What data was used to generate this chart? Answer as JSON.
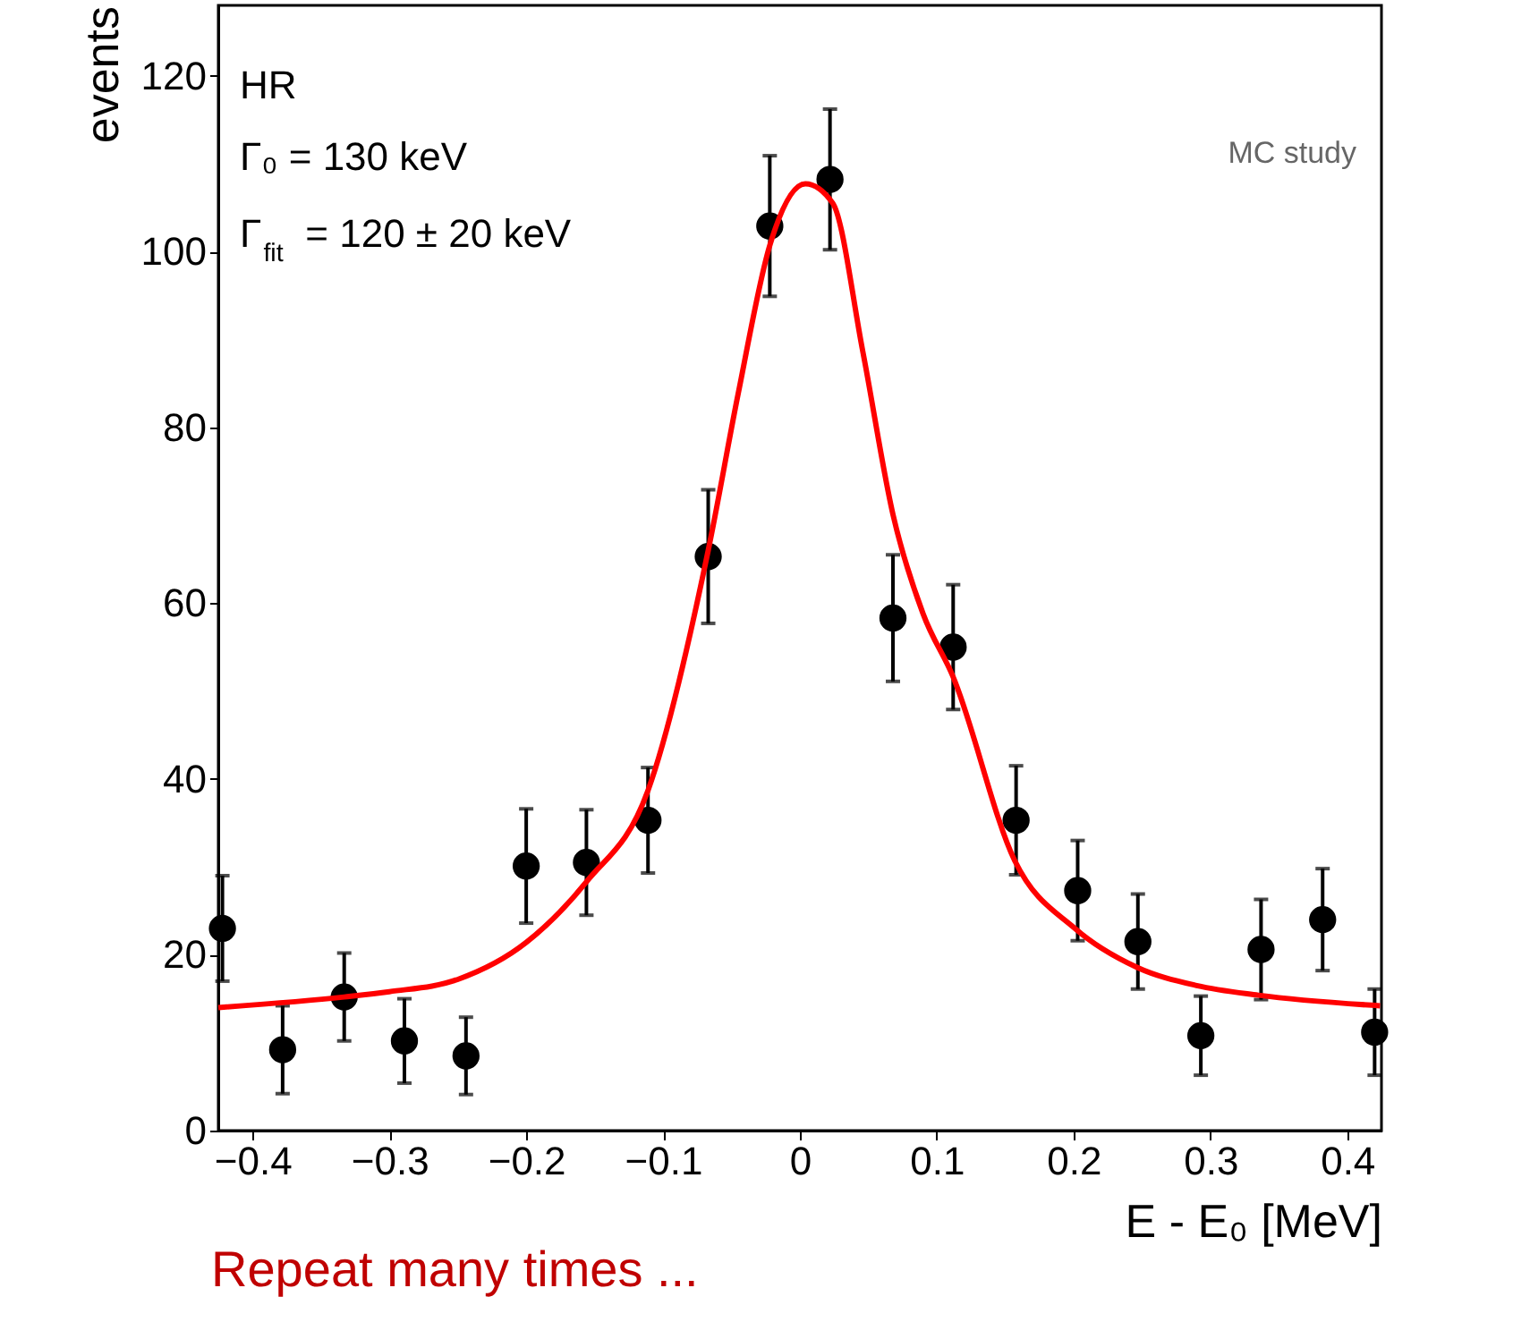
{
  "chart_data": {
    "type": "scatter",
    "xlabel": "E - E₀ [MeV]",
    "ylabel": "events",
    "xlim": [
      -0.425,
      0.425
    ],
    "ylim": [
      0,
      128
    ],
    "xticks": [
      {
        "value": -0.4,
        "label": "−0.4"
      },
      {
        "value": -0.3,
        "label": "−0.3"
      },
      {
        "value": -0.2,
        "label": "−0.2"
      },
      {
        "value": -0.1,
        "label": "−0.1"
      },
      0,
      0.1,
      0.2,
      0.3,
      0.4
    ],
    "yticks": [
      0,
      20,
      40,
      60,
      80,
      100,
      120
    ],
    "grid": false,
    "annotations": [
      "HR",
      "Γ₀  = 130 keV",
      "Γ$_{fit}$ = 120 ± 20 keV",
      "MC study",
      "Repeat many times ..."
    ],
    "series": [
      {
        "color": "#000000",
        "marker": "circle",
        "x": [
          -0.422,
          -0.378,
          -0.333,
          -0.289,
          -0.244,
          -0.2,
          -0.156,
          -0.111,
          -0.067,
          -0.022,
          0.022,
          0.068,
          0.112,
          0.158,
          0.203,
          0.247,
          0.293,
          0.337,
          0.382,
          0.42
        ],
        "values": [
          23,
          9.2,
          15.2,
          10.2,
          8.5,
          30.1,
          30.5,
          35.3,
          65.3,
          102.9,
          108.2,
          58.3,
          55,
          35.3,
          27.3,
          21.5,
          10.8,
          20.6,
          24,
          11.2
        ],
        "errors": [
          6,
          5,
          5,
          4.8,
          4.4,
          6.5,
          6,
          6,
          7.6,
          8,
          8,
          7.2,
          7.1,
          6.2,
          5.7,
          5.4,
          4.5,
          5.7,
          5.8,
          4.9
        ]
      },
      {
        "type": "line",
        "color": "#ff0000",
        "line_style": "solid",
        "x": [
          -0.425,
          -0.333,
          -0.3,
          -0.25,
          -0.2,
          -0.156,
          -0.111,
          -0.067,
          -0.045,
          -0.022,
          0.004,
          0.024,
          0.046,
          0.068,
          0.09,
          0.112,
          0.157,
          0.201,
          0.246,
          0.29,
          0.335,
          0.424
        ],
        "values": [
          14,
          15.2,
          15.8,
          17.2,
          21.4,
          28.3,
          38.7,
          66,
          83.9,
          100.7,
          107.7,
          105.5,
          88.6,
          70.1,
          58.8,
          51.6,
          30.7,
          23,
          18.6,
          16.5,
          15.4,
          14.2
        ]
      }
    ]
  }
}
